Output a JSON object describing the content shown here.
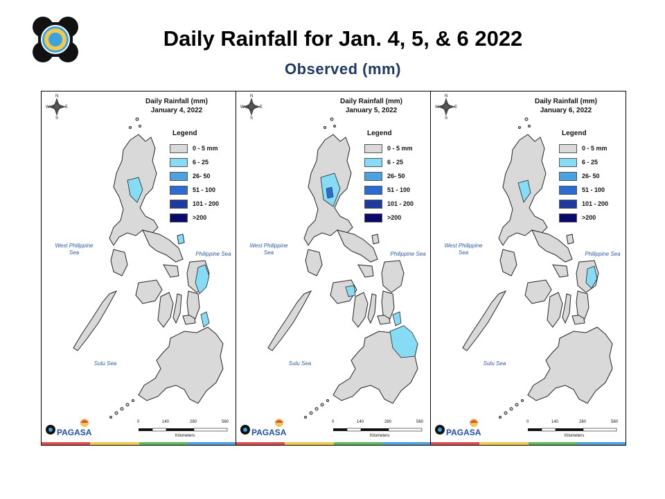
{
  "header": {
    "title": "Daily Rainfall for Jan. 4, 5, & 6 2022",
    "subtitle": "Observed (mm)",
    "logo_icon": "dost-logo-icon"
  },
  "legend": {
    "title": "Legend",
    "classes": [
      {
        "label": "0 - 5 mm",
        "color": "#d9d9d9"
      },
      {
        "label": "6 - 25",
        "color": "#86dcf5"
      },
      {
        "label": "26- 50",
        "color": "#4aa3e0"
      },
      {
        "label": "51 - 100",
        "color": "#2c6bd1"
      },
      {
        "label": "101 - 200",
        "color": "#1f3a9e"
      },
      {
        "label": ">200",
        "color": "#0a0a6b"
      }
    ]
  },
  "sea_labels": {
    "west": "West Philippine Sea",
    "philippine": "Philippine Sea",
    "sulu": "Sulu Sea"
  },
  "scale_bar": {
    "ticks": [
      "0",
      "140",
      "280",
      "560"
    ],
    "unit": "Kilometers"
  },
  "compass": {
    "n": "N",
    "e": "E",
    "s": "S",
    "w": "W"
  },
  "brand": {
    "name": "PAGASA",
    "icon": "pagasa-logo-icon"
  },
  "panels": [
    {
      "title_line1": "Daily Rainfall (mm)",
      "title_line2": "January 4, 2022",
      "highlight_regions": [
        "northeast-luzon",
        "catanduanes",
        "eastern-samar",
        "leyte-east"
      ]
    },
    {
      "title_line1": "Daily Rainfall (mm)",
      "title_line2": "January 5, 2022",
      "highlight_regions": [
        "northeast-luzon",
        "panay-coast",
        "eastern-mindanao"
      ]
    },
    {
      "title_line1": "Daily Rainfall (mm)",
      "title_line2": "January 6, 2022",
      "highlight_regions": [
        "northeast-luzon",
        "eastern-samar"
      ]
    }
  ],
  "footer_colors": [
    "#e04a4a",
    "#f2c94c",
    "#5cb85c",
    "#4aa3e0"
  ]
}
